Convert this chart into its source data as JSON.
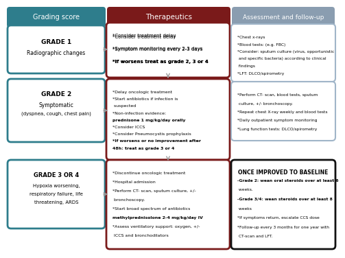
{
  "bg_color": "#ffffff",
  "header_teal": "#2e7d8c",
  "header_dark_red": "#7a1a1a",
  "header_gray": "#8a9db0",
  "box_teal_edge": "#2e7d8c",
  "box_dark_red_edge": "#7a1a1a",
  "box_gray_edge": "#a0b5c8",
  "box_black_edge": "#111111",
  "arrow_color": "#999999",
  "headers": [
    "Grading score",
    "Therapeutics",
    "Assessment and follow-up"
  ],
  "grade1_title": "GRADE 1",
  "grade1_sub": "Radiographic changes",
  "grade2_title": "GRADE 2",
  "grade2_sub1": "Symptomatic",
  "grade2_sub2": "(dyspnea, cough, chest pain)",
  "grade34_title": "GRADE 3 OR 4",
  "grade34_sub1": "Hypoxia worsening,",
  "grade34_sub2": "respiratory failure, life",
  "grade34_sub3": "threatening, ARDS",
  "t1_lines": [
    [
      "*Consider treatment delay",
      false
    ],
    [
      "*Symptom monitoring every 2-3 days",
      false
    ],
    [
      "*If worsens treat as grade 2, 3 or 4",
      true
    ]
  ],
  "t2_lines": [
    [
      "*Delay oncologic treatment",
      false
    ],
    [
      "*Start antibiotics if infection is",
      false
    ],
    [
      " suspected",
      false
    ],
    [
      "*Non-infection evidence:",
      false
    ],
    [
      "prednisone 1 mg/kg/day orally",
      true
    ],
    [
      "*Consider ICCS",
      false
    ],
    [
      "*Consider Pneumocystis prophylaxis",
      false
    ],
    [
      "*If worsens or no improvement after",
      true
    ],
    [
      "48h: treat as grade 3 or 4",
      true
    ]
  ],
  "t3_lines": [
    [
      "*Discontinue oncologic treatment",
      false
    ],
    [
      "*Hospital admission",
      false
    ],
    [
      "*Perform CT- scan, sputum culture, +/-",
      false
    ],
    [
      " bronchoscopy.",
      false
    ],
    [
      "*Start broad spectrum of antibiotics",
      false
    ],
    [
      "methylprednisolone 2-4 mg/kg/day IV",
      true
    ],
    [
      "*Assess ventilatory support: oxygen, +/-",
      false
    ],
    [
      " ICCS and bronchodilators",
      false
    ]
  ],
  "a1_lines": [
    "*Chest x-rays",
    "*Blood tests: (e.g. FBC)",
    "*Consider: sputum culture (virus, opportunistic",
    " and specific bacteria) according to clinical",
    " findings",
    "*LFT: DLCO/spirometry"
  ],
  "a2_lines": [
    "*Perform CT- scan, blood tests, sputum",
    " culture, +/- bronchoscopy.",
    "*Repeat chest X-ray weekly and blood tests",
    "*Daily outpatient symptom monitoring",
    "*Lung function tests: DLCO/spirometry"
  ],
  "a3_title": "ONCE IMPROVED TO BASELINE",
  "a3_lines": [
    [
      "-Grade 2: wean oral steroids over at least 6",
      true
    ],
    [
      " weeks.",
      false
    ],
    [
      "-Grade 3/4: wean steroids over at least 8",
      true
    ],
    [
      " weeks",
      false
    ],
    [
      "*If symptoms return, escalate CCS dose",
      false
    ],
    [
      "*Follow-up every 3 months for one year with",
      false
    ],
    [
      " CT-scan and LFT.",
      false
    ]
  ]
}
